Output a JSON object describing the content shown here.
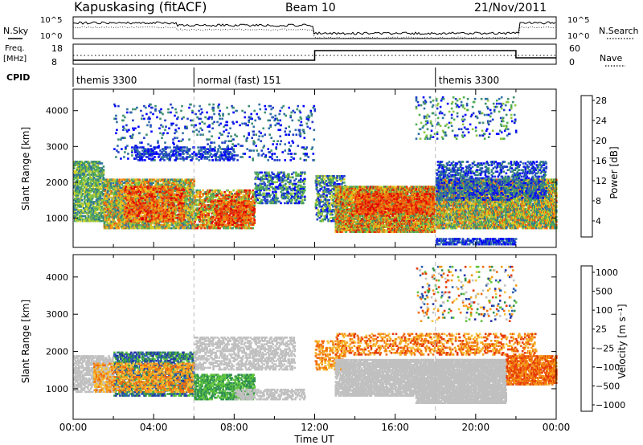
{
  "header": {
    "station": "Kapuskasing (fitACF)",
    "beam": "Beam 10",
    "date": "21/Nov/2011"
  },
  "status_panels": {
    "nsky_label": "N.Sky",
    "nsearch_label": "N.Search",
    "nsky_ticks": [
      "10^5",
      "10^0"
    ],
    "nsearch_ticks": [
      "10^5",
      "10^0"
    ],
    "freq_label": "Freq.",
    "freq_unit": "[MHz]",
    "freq_ticks": [
      "18",
      "8"
    ],
    "nave_label": "Nave",
    "nave_ticks": [
      "60",
      "0"
    ],
    "cpid_label": "CPID",
    "cpid_segments": [
      {
        "label": "themis 3300",
        "start": 0,
        "end": 6
      },
      {
        "label": "normal (fast) 151",
        "start": 6,
        "end": 18
      },
      {
        "label": "themis 3300",
        "start": 18,
        "end": 24
      }
    ]
  },
  "chart_data": [
    {
      "type": "heatmap",
      "quantity": "power",
      "ylabel": "Slant Range [km]",
      "yticks": [
        1000,
        2000,
        3000,
        4000
      ],
      "ylim": [
        180,
        4600
      ],
      "xlim": [
        0,
        24
      ],
      "colorbar": {
        "label": "Power [dB]",
        "ticks": [
          "4",
          "8",
          "12",
          "16",
          "20",
          "24",
          "28"
        ],
        "colors": [
          "#0000ff",
          "#1e3cc8",
          "#2e6fa4",
          "#3c8f6e",
          "#4fae52",
          "#8cc63f",
          "#cfd028",
          "#f3bc1c",
          "#f58a12",
          "#f05a0c",
          "#e43108",
          "#e10000"
        ]
      }
    },
    {
      "type": "heatmap",
      "quantity": "velocity",
      "ylabel": "Slant Range [km]",
      "yticks": [
        1000,
        2000,
        3000,
        4000
      ],
      "ylim": [
        180,
        4600
      ],
      "xlim": [
        0,
        24
      ],
      "colorbar": {
        "label": "Velocity [m s⁻¹]",
        "ticks": [
          "1000",
          "500",
          "100",
          "25",
          "−25",
          "−100",
          "−500",
          "−1000"
        ],
        "colors": [
          "#2332a8",
          "#2a5fb0",
          "#2f8f4e",
          "#5fc53a",
          "#c0c0c0",
          "#c0c0c0",
          "#f6c23a",
          "#f59a18",
          "#f06c0e",
          "#e63a06",
          "#e00000"
        ]
      }
    }
  ],
  "xaxis": {
    "label": "Time UT",
    "ticks": [
      "00:00",
      "04:00",
      "08:00",
      "12:00",
      "16:00",
      "20:00",
      "00:00"
    ]
  }
}
